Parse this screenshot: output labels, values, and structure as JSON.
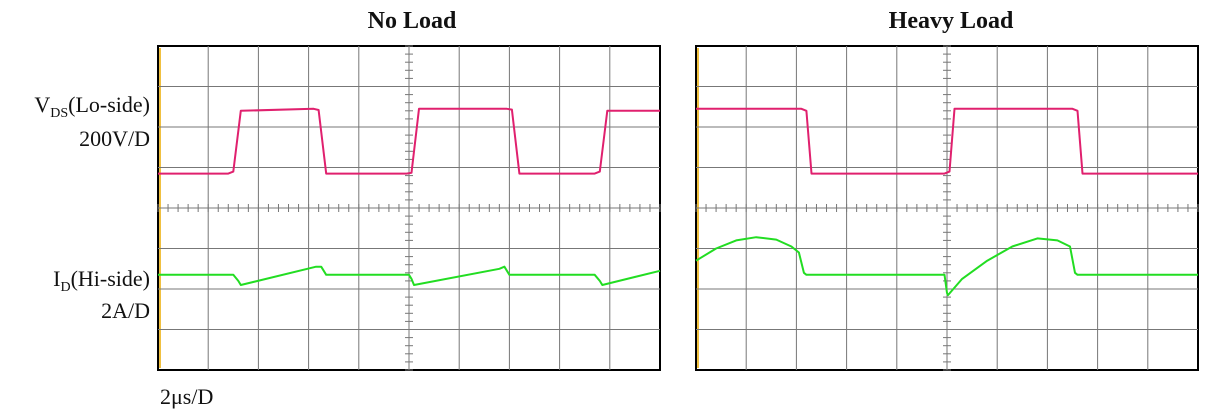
{
  "labels": {
    "vds_prefix": "V",
    "vds_sub": "DS",
    "vds_suffix": "(Lo-side)",
    "vds_scale": "200V/D",
    "id_prefix": "I",
    "id_sub": "D",
    "id_suffix": "(Hi-side)",
    "id_scale": "2A/D",
    "time_scale": "2μs/D"
  },
  "colors": {
    "vds_trace": "#e0206e",
    "id_trace": "#22dd22",
    "grid": "#777777",
    "frame": "#000000",
    "left_marker": "#f0c040"
  },
  "chart_data": [
    {
      "type": "line",
      "title": "No Load",
      "grid": true,
      "divisions": {
        "x": 10,
        "y": 8
      },
      "xlim": [
        0,
        10
      ],
      "ylim": [
        -4,
        4
      ],
      "series": [
        {
          "name": "V_DS (Lo-side)",
          "color_key": "vds_trace",
          "x": [
            0,
            1.4,
            1.5,
            1.65,
            3.1,
            3.2,
            3.35,
            4.95,
            5.05,
            5.2,
            6.95,
            7.05,
            7.2,
            8.7,
            8.8,
            8.95,
            10
          ],
          "y": [
            0.85,
            0.85,
            0.9,
            2.4,
            2.45,
            2.42,
            0.85,
            0.85,
            0.87,
            2.45,
            2.45,
            2.43,
            0.85,
            0.85,
            0.9,
            2.4,
            2.4
          ]
        },
        {
          "name": "I_D (Hi-side)",
          "color_key": "id_trace",
          "x": [
            0,
            1.5,
            1.6,
            1.65,
            3.15,
            3.25,
            3.35,
            5.0,
            5.05,
            5.1,
            6.8,
            6.9,
            7.0,
            8.7,
            8.8,
            8.85,
            10
          ],
          "y": [
            -1.65,
            -1.65,
            -1.8,
            -1.9,
            -1.45,
            -1.45,
            -1.65,
            -1.65,
            -1.75,
            -1.9,
            -1.5,
            -1.45,
            -1.65,
            -1.65,
            -1.8,
            -1.9,
            -1.55
          ]
        }
      ]
    },
    {
      "type": "line",
      "title": "Heavy Load",
      "grid": true,
      "divisions": {
        "x": 10,
        "y": 8
      },
      "xlim": [
        0,
        10
      ],
      "ylim": [
        -4,
        4
      ],
      "series": [
        {
          "name": "V_DS (Lo-side)",
          "color_key": "vds_trace",
          "x": [
            0,
            2.1,
            2.2,
            2.3,
            4.95,
            5.05,
            5.15,
            7.5,
            7.6,
            7.7,
            10
          ],
          "y": [
            2.45,
            2.45,
            2.4,
            0.85,
            0.85,
            0.9,
            2.45,
            2.45,
            2.4,
            0.85,
            0.85
          ],
          "_note": ""
        },
        {
          "name": "I_D (Hi-side)",
          "color_key": "id_trace",
          "x": [
            0,
            0.4,
            0.8,
            1.2,
            1.6,
            1.9,
            2.05,
            2.15,
            2.2,
            4.95,
            5.0,
            5.02,
            5.3,
            5.8,
            6.3,
            6.8,
            7.2,
            7.45,
            7.55,
            7.6,
            10
          ],
          "y": [
            -1.3,
            -1.0,
            -0.8,
            -0.72,
            -0.78,
            -0.95,
            -1.1,
            -1.6,
            -1.65,
            -1.65,
            -2.1,
            -2.15,
            -1.75,
            -1.3,
            -0.95,
            -0.75,
            -0.8,
            -0.95,
            -1.6,
            -1.65,
            -1.65
          ]
        }
      ]
    }
  ]
}
